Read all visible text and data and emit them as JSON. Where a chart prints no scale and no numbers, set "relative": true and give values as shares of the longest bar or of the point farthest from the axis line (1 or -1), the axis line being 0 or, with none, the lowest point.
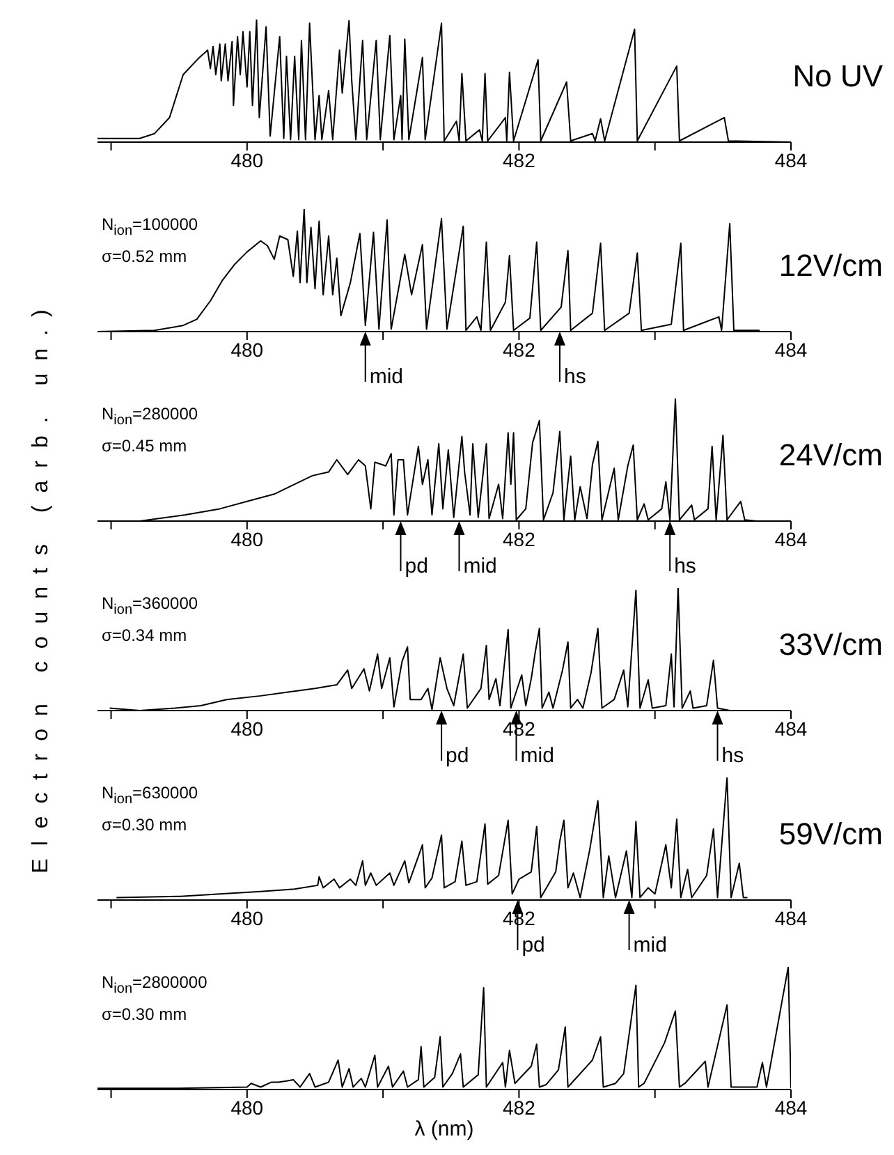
{
  "chart_data": [
    {
      "type": "line",
      "title": "No UV",
      "relative": true,
      "color": "#000000",
      "xlim": [
        478.9,
        484
      ],
      "xticks": [
        {
          "value": 479,
          "label": null
        },
        480,
        {
          "value": 481,
          "label": null
        },
        482,
        {
          "value": 483,
          "label": null
        },
        484
      ],
      "x": [
        478.9,
        479.21,
        479.32,
        479.43,
        479.53,
        479.64,
        479.71,
        479.73,
        479.75,
        479.77,
        479.8,
        479.81,
        479.84,
        479.86,
        479.89,
        479.9,
        479.93,
        479.95,
        479.97,
        480.0,
        480.02,
        480.04,
        480.07,
        480.09,
        480.14,
        480.17,
        480.24,
        480.27,
        480.29,
        480.32,
        480.35,
        480.38,
        480.4,
        480.43,
        480.46,
        480.5,
        480.53,
        480.55,
        480.6,
        480.63,
        480.68,
        480.7,
        480.75,
        480.77,
        480.8,
        480.85,
        480.88,
        480.95,
        480.98,
        481.05,
        481.08,
        481.13,
        481.14,
        481.16,
        481.19,
        481.29,
        481.31,
        481.43,
        481.45,
        481.54,
        481.56,
        481.58,
        481.61,
        481.71,
        481.73,
        481.75,
        481.77,
        481.9,
        481.91,
        481.93,
        481.96,
        482.14,
        482.16,
        482.35,
        482.38,
        482.54,
        482.56,
        482.6,
        482.63,
        482.85,
        482.87,
        483.16,
        483.18,
        483.51,
        483.54,
        484.0
      ],
      "values": [
        0.03,
        0.03,
        0.07,
        0.2,
        0.55,
        0.68,
        0.75,
        0.6,
        0.78,
        0.55,
        0.8,
        0.5,
        0.8,
        0.5,
        0.82,
        0.3,
        0.86,
        0.55,
        0.9,
        0.45,
        0.9,
        0.3,
        1.0,
        0.2,
        0.94,
        0.05,
        0.86,
        0.03,
        0.7,
        0.02,
        0.7,
        0.02,
        0.83,
        0.02,
        0.97,
        0.02,
        0.38,
        0.02,
        0.42,
        0.02,
        0.75,
        0.4,
        0.99,
        0.5,
        0.02,
        0.83,
        0.02,
        0.83,
        0.02,
        0.87,
        0.02,
        0.38,
        0.02,
        0.84,
        0.02,
        0.69,
        0.02,
        0.97,
        0.01,
        0.17,
        0.01,
        0.56,
        0.01,
        0.1,
        0.01,
        0.56,
        0.01,
        0.2,
        0.01,
        0.57,
        0.01,
        0.67,
        0.01,
        0.49,
        0.01,
        0.07,
        0.01,
        0.19,
        0.01,
        0.92,
        0.01,
        0.62,
        0.01,
        0.2,
        0.01,
        0
      ]
    },
    {
      "type": "line",
      "title": "12V/cm",
      "relative": true,
      "color": "#000000",
      "xlim": [
        478.9,
        484
      ],
      "xticks": [
        {
          "value": 479,
          "label": null
        },
        480,
        {
          "value": 481,
          "label": null
        },
        482,
        {
          "value": 483,
          "label": null
        },
        484
      ],
      "annotations": [
        "N$_{ion}$=100000",
        "σ=0.52 mm"
      ],
      "ref_lines": [
        {
          "axis": "x",
          "value": 480.87,
          "label": "mid"
        },
        {
          "axis": "x",
          "value": 482.3,
          "label": "hs"
        }
      ],
      "x": [
        478.9,
        479.32,
        479.53,
        479.63,
        479.73,
        479.82,
        479.91,
        480.0,
        480.1,
        480.15,
        480.2,
        480.24,
        480.3,
        480.34,
        480.37,
        480.39,
        480.42,
        480.44,
        480.47,
        480.5,
        480.53,
        480.56,
        480.6,
        480.63,
        480.66,
        480.69,
        480.76,
        480.83,
        480.87,
        480.93,
        480.97,
        481.03,
        481.06,
        481.16,
        481.21,
        481.29,
        481.32,
        481.43,
        481.47,
        481.59,
        481.61,
        481.69,
        481.72,
        481.76,
        481.79,
        481.9,
        481.93,
        481.96,
        482.08,
        482.13,
        482.16,
        482.31,
        482.36,
        482.38,
        482.54,
        482.6,
        482.63,
        482.81,
        482.87,
        482.9,
        483.12,
        483.19,
        483.21,
        483.47,
        483.49,
        483.55,
        483.58,
        483.77
      ],
      "values": [
        0,
        0.01,
        0.05,
        0.1,
        0.25,
        0.42,
        0.55,
        0.65,
        0.74,
        0.7,
        0.59,
        0.78,
        0.75,
        0.45,
        0.82,
        0.4,
        1.0,
        0.4,
        0.85,
        0.35,
        0.9,
        0.3,
        0.78,
        0.3,
        0.6,
        0.13,
        0.4,
        0.8,
        0.05,
        0.81,
        0.02,
        0.91,
        0.02,
        0.63,
        0.3,
        0.71,
        0.02,
        0.92,
        0.02,
        0.86,
        0.01,
        0.12,
        0.01,
        0.73,
        0.01,
        0.24,
        0.62,
        0.01,
        0.11,
        0.73,
        0.01,
        0.2,
        0.66,
        0.01,
        0.15,
        0.72,
        0.01,
        0.15,
        0.64,
        0.01,
        0.06,
        0.72,
        0.01,
        0.12,
        0.01,
        0.88,
        0.01,
        0.01
      ]
    },
    {
      "type": "line",
      "title": "24V/cm",
      "relative": true,
      "color": "#000000",
      "xlim": [
        478.9,
        484
      ],
      "xticks": [
        {
          "value": 479,
          "label": null
        },
        480,
        {
          "value": 481,
          "label": null
        },
        482,
        {
          "value": 483,
          "label": null
        },
        484
      ],
      "annotations": [
        "N$_{ion}$=280000",
        "σ=0.45 mm"
      ],
      "ref_lines": [
        {
          "axis": "x",
          "value": 481.13,
          "label": "pd"
        },
        {
          "axis": "x",
          "value": 481.56,
          "label": "mid"
        },
        {
          "axis": "x",
          "value": 483.11,
          "label": "hs"
        }
      ],
      "x": [
        478.9,
        479.21,
        479.54,
        479.8,
        480.0,
        480.2,
        480.35,
        480.48,
        480.6,
        480.66,
        480.74,
        480.82,
        480.87,
        480.91,
        480.94,
        481.02,
        481.06,
        481.08,
        481.11,
        481.15,
        481.18,
        481.26,
        481.29,
        481.33,
        481.36,
        481.41,
        481.44,
        481.48,
        481.52,
        481.58,
        481.6,
        481.64,
        481.66,
        481.7,
        481.76,
        481.78,
        481.85,
        481.88,
        481.92,
        481.94,
        481.96,
        481.98,
        482.05,
        482.1,
        482.15,
        482.18,
        482.25,
        482.3,
        482.33,
        482.38,
        482.41,
        482.45,
        482.5,
        482.54,
        482.58,
        482.61,
        482.7,
        482.73,
        482.8,
        482.84,
        482.87,
        482.92,
        482.95,
        483.05,
        483.08,
        483.11,
        483.15,
        483.18,
        483.27,
        483.29,
        483.39,
        483.42,
        483.45,
        483.5,
        483.53,
        483.63,
        483.66,
        483.75
      ],
      "values": [
        0,
        0,
        0.05,
        0.1,
        0.16,
        0.22,
        0.3,
        0.37,
        0.4,
        0.5,
        0.38,
        0.5,
        0.45,
        0.1,
        0.48,
        0.45,
        0.55,
        0.05,
        0.5,
        0.5,
        0.05,
        0.61,
        0.3,
        0.5,
        0.05,
        0.63,
        0.1,
        0.58,
        0.03,
        0.69,
        0.4,
        0.05,
        0.63,
        0.03,
        0.63,
        0.02,
        0.3,
        0.02,
        0.72,
        0.3,
        0.72,
        0.01,
        0.1,
        0.64,
        0.82,
        0.01,
        0.23,
        0.73,
        0.01,
        0.53,
        0.01,
        0.28,
        0.02,
        0.46,
        0.65,
        0.01,
        0.43,
        0.01,
        0.45,
        0.62,
        0.01,
        0.14,
        0.01,
        0.1,
        0.32,
        0.01,
        1.0,
        0.01,
        0.13,
        0.01,
        0.1,
        0.61,
        0.01,
        0.7,
        0.01,
        0.16,
        0.01,
        0
      ]
    },
    {
      "type": "line",
      "title": "33V/cm",
      "ylabel": "Electron counts (arb. un.)",
      "relative": true,
      "color": "#000000",
      "xlim": [
        478.9,
        484
      ],
      "xticks": [
        {
          "value": 479,
          "label": null
        },
        480,
        {
          "value": 481,
          "label": null
        },
        482,
        {
          "value": 483,
          "label": null
        },
        484
      ],
      "annotations": [
        "N$_{ion}$=360000",
        "σ=0.34 mm"
      ],
      "ref_lines": [
        {
          "axis": "x",
          "value": 481.43,
          "label": "pd"
        },
        {
          "axis": "x",
          "value": 481.98,
          "label": "mid"
        },
        {
          "axis": "x",
          "value": 483.46,
          "label": "hs"
        }
      ],
      "x": [
        478.99,
        479.21,
        479.47,
        479.66,
        479.85,
        480.1,
        480.3,
        480.5,
        480.66,
        480.74,
        480.77,
        480.86,
        480.9,
        480.96,
        480.99,
        481.05,
        481.08,
        481.14,
        481.18,
        481.2,
        481.28,
        481.33,
        481.36,
        481.42,
        481.47,
        481.52,
        481.59,
        481.62,
        481.72,
        481.76,
        481.78,
        481.83,
        481.86,
        481.92,
        481.94,
        482.02,
        482.05,
        482.09,
        482.12,
        482.15,
        482.17,
        482.22,
        482.25,
        482.32,
        482.36,
        482.38,
        482.43,
        482.47,
        482.53,
        482.58,
        482.61,
        482.7,
        482.77,
        482.8,
        482.86,
        482.89,
        482.95,
        482.98,
        483.08,
        483.12,
        483.14,
        483.17,
        483.2,
        483.26,
        483.28,
        483.38,
        483.43,
        483.46,
        483.55
      ],
      "values": [
        0.02,
        0,
        0.02,
        0.04,
        0.09,
        0.12,
        0.15,
        0.18,
        0.21,
        0.33,
        0.18,
        0.34,
        0.16,
        0.46,
        0.18,
        0.43,
        0.03,
        0.4,
        0.52,
        0.09,
        0.09,
        0.18,
        0.01,
        0.43,
        0.18,
        0.04,
        0.46,
        0.02,
        0.18,
        0.53,
        0.09,
        0.26,
        0.04,
        0.66,
        0.02,
        0.29,
        0.04,
        0.26,
        0.48,
        0.67,
        0.02,
        0.15,
        0.02,
        0.33,
        0.56,
        0.02,
        0.09,
        0.02,
        0.31,
        0.67,
        0.02,
        0.09,
        0.33,
        0.03,
        0.98,
        0.02,
        0.25,
        0.02,
        0.04,
        0.46,
        0.03,
        1.0,
        0.02,
        0.16,
        0.02,
        0.04,
        0.41,
        0.02,
        0
      ]
    },
    {
      "type": "line",
      "title": "59V/cm",
      "relative": true,
      "color": "#000000",
      "xlim": [
        478.9,
        484
      ],
      "xticks": [
        {
          "value": 479,
          "label": null
        },
        480,
        {
          "value": 481,
          "label": null
        },
        482,
        {
          "value": 483,
          "label": null
        },
        484
      ],
      "annotations": [
        "N$_{ion}$=630000",
        "σ=0.30 mm"
      ],
      "ref_lines": [
        {
          "axis": "x",
          "value": 481.99,
          "label": "pd"
        },
        {
          "axis": "x",
          "value": 482.81,
          "label": "mid"
        }
      ],
      "x": [
        479.04,
        479.51,
        479.8,
        480.1,
        480.35,
        480.52,
        480.53,
        480.56,
        480.64,
        480.68,
        480.76,
        480.8,
        480.85,
        480.87,
        480.91,
        480.95,
        481.05,
        481.08,
        481.16,
        481.19,
        481.29,
        481.31,
        481.36,
        481.43,
        481.45,
        481.53,
        481.58,
        481.61,
        481.69,
        481.75,
        481.77,
        481.85,
        481.92,
        481.95,
        482.0,
        482.09,
        482.13,
        482.16,
        482.27,
        482.3,
        482.33,
        482.36,
        482.4,
        482.45,
        482.52,
        482.58,
        482.62,
        482.66,
        482.71,
        482.79,
        482.83,
        482.86,
        482.89,
        482.95,
        483.0,
        483.08,
        483.12,
        483.16,
        483.19,
        483.24,
        483.27,
        483.38,
        483.43,
        483.46,
        483.53,
        483.56,
        483.62,
        483.65,
        483.68
      ],
      "values": [
        0.02,
        0.03,
        0.05,
        0.07,
        0.09,
        0.12,
        0.19,
        0.1,
        0.17,
        0.1,
        0.17,
        0.12,
        0.32,
        0.12,
        0.22,
        0.12,
        0.22,
        0.12,
        0.32,
        0.14,
        0.45,
        0.1,
        0.18,
        0.53,
        0.1,
        0.15,
        0.48,
        0.12,
        0.15,
        0.62,
        0.13,
        0.2,
        0.65,
        0.05,
        0.17,
        0.23,
        0.6,
        0.02,
        0.23,
        0.48,
        0.65,
        0.1,
        0.22,
        0.02,
        0.41,
        0.81,
        0.02,
        0.36,
        0.02,
        0.4,
        0.02,
        0.64,
        0.02,
        0.1,
        0.05,
        0.45,
        0.1,
        0.66,
        0.02,
        0.25,
        0.02,
        0.2,
        0.58,
        0.02,
        1.0,
        0.02,
        0.3,
        0.02,
        0.02
      ]
    },
    {
      "type": "line",
      "xlabel": "λ (nm)",
      "relative": true,
      "color": "#000000",
      "xlim": [
        478.9,
        484
      ],
      "xticks": [
        {
          "value": 479,
          "label": null
        },
        480,
        {
          "value": 481,
          "label": null
        },
        482,
        {
          "value": 483,
          "label": null
        },
        484
      ],
      "annotations": [
        "N$_{ion}$=2800000",
        "σ=0.30 mm"
      ],
      "x": [
        478.9,
        479.5,
        480.0,
        480.03,
        480.1,
        480.18,
        480.23,
        480.29,
        480.34,
        480.39,
        480.46,
        480.5,
        480.6,
        480.67,
        480.7,
        480.75,
        480.78,
        480.84,
        480.87,
        480.94,
        480.96,
        481.04,
        481.07,
        481.15,
        481.18,
        481.26,
        481.28,
        481.3,
        481.38,
        481.42,
        481.44,
        481.51,
        481.57,
        481.59,
        481.7,
        481.74,
        481.76,
        481.88,
        481.9,
        481.93,
        481.97,
        482.09,
        482.13,
        482.15,
        482.2,
        482.29,
        482.34,
        482.36,
        482.54,
        482.6,
        482.62,
        482.71,
        482.77,
        482.86,
        482.88,
        482.92,
        483.07,
        483.15,
        483.18,
        483.22,
        483.37,
        483.39,
        483.53,
        483.56,
        483.75,
        483.79,
        483.82,
        483.98,
        484.0
      ],
      "values": [
        0.01,
        0.01,
        0.02,
        0.05,
        0.02,
        0.06,
        0.06,
        0.07,
        0.08,
        0.02,
        0.13,
        0.02,
        0.06,
        0.24,
        0.02,
        0.17,
        0.02,
        0.09,
        0.02,
        0.28,
        0.02,
        0.19,
        0.02,
        0.15,
        0.02,
        0.08,
        0.35,
        0.02,
        0.1,
        0.43,
        0.02,
        0.13,
        0.29,
        0.02,
        0.12,
        0.83,
        0.02,
        0.22,
        0.02,
        0.32,
        0.05,
        0.19,
        0.37,
        0.02,
        0.04,
        0.16,
        0.51,
        0.02,
        0.24,
        0.43,
        0.02,
        0.05,
        0.13,
        0.85,
        0.02,
        0.05,
        0.38,
        0.64,
        0.02,
        0.05,
        0.23,
        0.02,
        0.69,
        0.02,
        0.02,
        0.22,
        0.02,
        1.0,
        0.01
      ]
    }
  ]
}
